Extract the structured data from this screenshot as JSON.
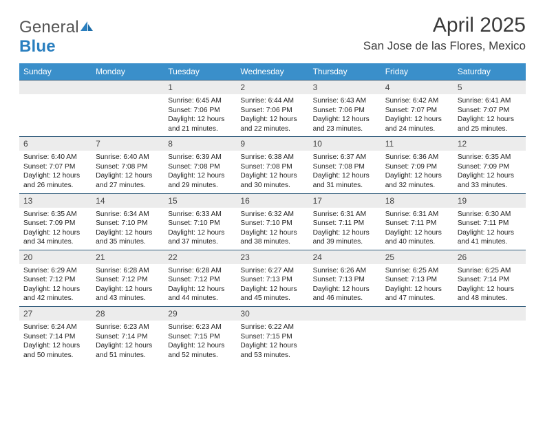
{
  "brand": {
    "name_gray": "General",
    "name_blue": "Blue"
  },
  "title": {
    "month": "April 2025",
    "location": "San Jose de las Flores, Mexico"
  },
  "colors": {
    "header_bg": "#3a8fca",
    "daynum_bg": "#ececec",
    "rule": "#2f5a7a",
    "text": "#222222",
    "logo_gray": "#6a6a6a",
    "logo_blue": "#2a7fbf"
  },
  "weekdays": [
    "Sunday",
    "Monday",
    "Tuesday",
    "Wednesday",
    "Thursday",
    "Friday",
    "Saturday"
  ],
  "weeks": [
    [
      null,
      null,
      {
        "n": "1",
        "sr": "6:45 AM",
        "ss": "7:06 PM",
        "dl": "12 hours and 21 minutes."
      },
      {
        "n": "2",
        "sr": "6:44 AM",
        "ss": "7:06 PM",
        "dl": "12 hours and 22 minutes."
      },
      {
        "n": "3",
        "sr": "6:43 AM",
        "ss": "7:06 PM",
        "dl": "12 hours and 23 minutes."
      },
      {
        "n": "4",
        "sr": "6:42 AM",
        "ss": "7:07 PM",
        "dl": "12 hours and 24 minutes."
      },
      {
        "n": "5",
        "sr": "6:41 AM",
        "ss": "7:07 PM",
        "dl": "12 hours and 25 minutes."
      }
    ],
    [
      {
        "n": "6",
        "sr": "6:40 AM",
        "ss": "7:07 PM",
        "dl": "12 hours and 26 minutes."
      },
      {
        "n": "7",
        "sr": "6:40 AM",
        "ss": "7:08 PM",
        "dl": "12 hours and 27 minutes."
      },
      {
        "n": "8",
        "sr": "6:39 AM",
        "ss": "7:08 PM",
        "dl": "12 hours and 29 minutes."
      },
      {
        "n": "9",
        "sr": "6:38 AM",
        "ss": "7:08 PM",
        "dl": "12 hours and 30 minutes."
      },
      {
        "n": "10",
        "sr": "6:37 AM",
        "ss": "7:08 PM",
        "dl": "12 hours and 31 minutes."
      },
      {
        "n": "11",
        "sr": "6:36 AM",
        "ss": "7:09 PM",
        "dl": "12 hours and 32 minutes."
      },
      {
        "n": "12",
        "sr": "6:35 AM",
        "ss": "7:09 PM",
        "dl": "12 hours and 33 minutes."
      }
    ],
    [
      {
        "n": "13",
        "sr": "6:35 AM",
        "ss": "7:09 PM",
        "dl": "12 hours and 34 minutes."
      },
      {
        "n": "14",
        "sr": "6:34 AM",
        "ss": "7:10 PM",
        "dl": "12 hours and 35 minutes."
      },
      {
        "n": "15",
        "sr": "6:33 AM",
        "ss": "7:10 PM",
        "dl": "12 hours and 37 minutes."
      },
      {
        "n": "16",
        "sr": "6:32 AM",
        "ss": "7:10 PM",
        "dl": "12 hours and 38 minutes."
      },
      {
        "n": "17",
        "sr": "6:31 AM",
        "ss": "7:11 PM",
        "dl": "12 hours and 39 minutes."
      },
      {
        "n": "18",
        "sr": "6:31 AM",
        "ss": "7:11 PM",
        "dl": "12 hours and 40 minutes."
      },
      {
        "n": "19",
        "sr": "6:30 AM",
        "ss": "7:11 PM",
        "dl": "12 hours and 41 minutes."
      }
    ],
    [
      {
        "n": "20",
        "sr": "6:29 AM",
        "ss": "7:12 PM",
        "dl": "12 hours and 42 minutes."
      },
      {
        "n": "21",
        "sr": "6:28 AM",
        "ss": "7:12 PM",
        "dl": "12 hours and 43 minutes."
      },
      {
        "n": "22",
        "sr": "6:28 AM",
        "ss": "7:12 PM",
        "dl": "12 hours and 44 minutes."
      },
      {
        "n": "23",
        "sr": "6:27 AM",
        "ss": "7:13 PM",
        "dl": "12 hours and 45 minutes."
      },
      {
        "n": "24",
        "sr": "6:26 AM",
        "ss": "7:13 PM",
        "dl": "12 hours and 46 minutes."
      },
      {
        "n": "25",
        "sr": "6:25 AM",
        "ss": "7:13 PM",
        "dl": "12 hours and 47 minutes."
      },
      {
        "n": "26",
        "sr": "6:25 AM",
        "ss": "7:14 PM",
        "dl": "12 hours and 48 minutes."
      }
    ],
    [
      {
        "n": "27",
        "sr": "6:24 AM",
        "ss": "7:14 PM",
        "dl": "12 hours and 50 minutes."
      },
      {
        "n": "28",
        "sr": "6:23 AM",
        "ss": "7:14 PM",
        "dl": "12 hours and 51 minutes."
      },
      {
        "n": "29",
        "sr": "6:23 AM",
        "ss": "7:15 PM",
        "dl": "12 hours and 52 minutes."
      },
      {
        "n": "30",
        "sr": "6:22 AM",
        "ss": "7:15 PM",
        "dl": "12 hours and 53 minutes."
      },
      null,
      null,
      null
    ]
  ],
  "labels": {
    "sunrise": "Sunrise:",
    "sunset": "Sunset:",
    "daylight": "Daylight:"
  }
}
